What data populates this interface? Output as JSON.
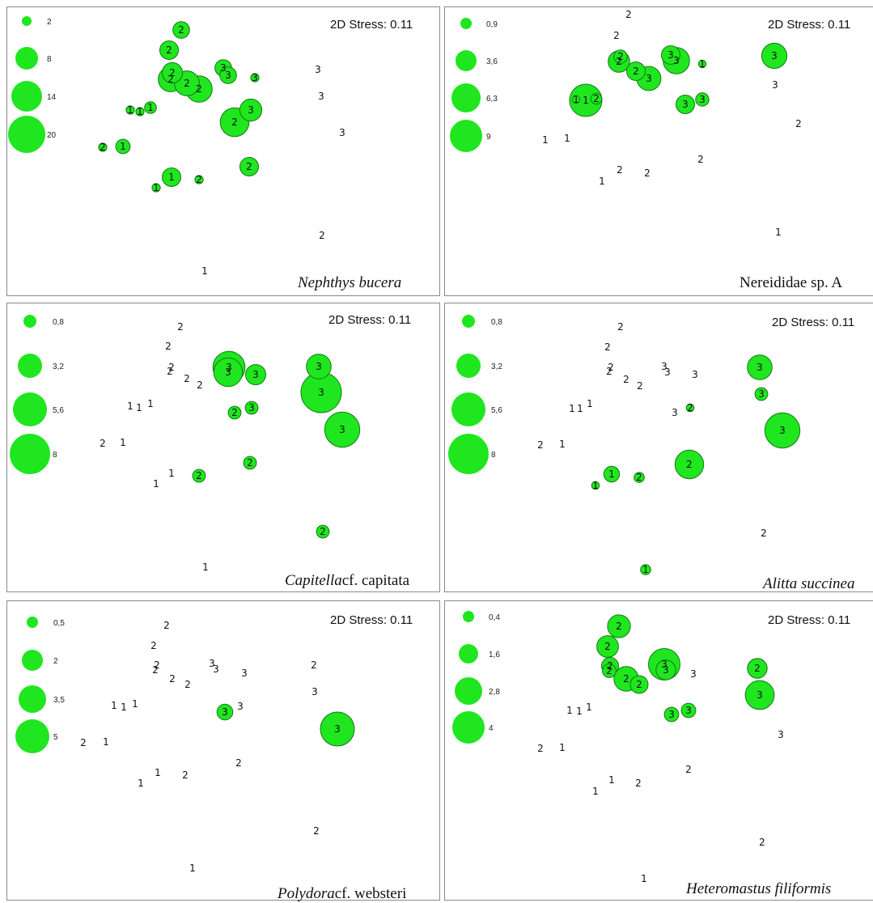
{
  "chart_data": [
    {
      "type": "scatter",
      "title": "",
      "species": "Nephthys bucera",
      "stress": "2D Stress: 0.11",
      "legend": {
        "values": [
          "2",
          "8",
          "14",
          "20"
        ]
      },
      "points": [
        {
          "group": "2",
          "size": 4
        },
        {
          "group": "2",
          "size": 5
        },
        {
          "group": "2",
          "size": 6
        },
        {
          "group": "2",
          "size": 9
        },
        {
          "group": "2",
          "size": 9
        },
        {
          "group": "2",
          "size": 10
        },
        {
          "group": "3",
          "size": 4
        },
        {
          "group": "3",
          "size": 4
        },
        {
          "group": "3",
          "size": 1
        },
        {
          "group": "1",
          "size": 1
        },
        {
          "group": "1",
          "size": 1
        },
        {
          "group": "1",
          "size": 2
        },
        {
          "group": "2",
          "size": 12
        },
        {
          "group": "3",
          "size": 7
        },
        {
          "group": "3",
          "size": 0
        },
        {
          "group": "3",
          "size": 0
        },
        {
          "group": "3",
          "size": 0
        },
        {
          "group": "2",
          "size": 1
        },
        {
          "group": "1",
          "size": 3
        },
        {
          "group": "1",
          "size": 5
        },
        {
          "group": "2",
          "size": 1
        },
        {
          "group": "1",
          "size": 1
        },
        {
          "group": "2",
          "size": 5
        },
        {
          "group": "2",
          "size": 0
        },
        {
          "group": "1",
          "size": 0
        }
      ]
    },
    {
      "type": "scatter",
      "title": "",
      "species": "Nereididae  sp. A",
      "stress": "2D Stress: 0.11",
      "legend": {
        "values": [
          "0,9",
          "3,6",
          "6,3",
          "9"
        ]
      },
      "points": [
        {
          "group": "2",
          "size": 0
        },
        {
          "group": "2",
          "size": 0
        },
        {
          "group": "2",
          "size": 1.5
        },
        {
          "group": "2",
          "size": 4
        },
        {
          "group": "2",
          "size": 3
        },
        {
          "group": "3",
          "size": 5
        },
        {
          "group": "3",
          "size": 3
        },
        {
          "group": "3",
          "size": 6
        },
        {
          "group": "1",
          "size": 0.5
        },
        {
          "group": "1",
          "size": 0.5
        },
        {
          "group": "1",
          "size": 9
        },
        {
          "group": "2",
          "size": 1
        },
        {
          "group": "3",
          "size": 3
        },
        {
          "group": "3",
          "size": 1.5
        },
        {
          "group": "3",
          "size": 5.5
        },
        {
          "group": "3",
          "size": 0
        },
        {
          "group": "2",
          "size": 0
        },
        {
          "group": "1",
          "size": 0
        },
        {
          "group": "1",
          "size": 0
        },
        {
          "group": "1",
          "size": 0
        },
        {
          "group": "2",
          "size": 0
        },
        {
          "group": "2",
          "size": 0
        },
        {
          "group": "2",
          "size": 0
        },
        {
          "group": "1",
          "size": 0
        }
      ]
    },
    {
      "type": "scatter",
      "title": "",
      "species": "Capitella",
      "species_tail": "cf. capitata",
      "stress": "2D Stress: 0.11",
      "legend": {
        "values": [
          "0,8",
          "3,2",
          "5,6",
          "8"
        ]
      },
      "points": [
        {
          "group": "2",
          "size": 0
        },
        {
          "group": "2",
          "size": 0
        },
        {
          "group": "2",
          "size": 0
        },
        {
          "group": "2",
          "size": 0
        },
        {
          "group": "2",
          "size": 0
        },
        {
          "group": "2",
          "size": 0
        },
        {
          "group": "3",
          "size": 5
        },
        {
          "group": "3",
          "size": 4
        },
        {
          "group": "3",
          "size": 2
        },
        {
          "group": "2",
          "size": 0.8
        },
        {
          "group": "3",
          "size": 0.8
        },
        {
          "group": "3",
          "size": 3
        },
        {
          "group": "3",
          "size": 8
        },
        {
          "group": "3",
          "size": 6
        },
        {
          "group": "1",
          "size": 0
        },
        {
          "group": "1",
          "size": 0
        },
        {
          "group": "1",
          "size": 0
        },
        {
          "group": "2",
          "size": 0
        },
        {
          "group": "1",
          "size": 0
        },
        {
          "group": "1",
          "size": 0
        },
        {
          "group": "1",
          "size": 0
        },
        {
          "group": "2",
          "size": 0.8
        },
        {
          "group": "2",
          "size": 0.8
        },
        {
          "group": "2",
          "size": 0.8
        },
        {
          "group": "1",
          "size": 0
        }
      ]
    },
    {
      "type": "scatter",
      "title": "",
      "species": "Alitta succinea",
      "stress": "2D Stress: 0.11",
      "legend": {
        "values": [
          "0,8",
          "3,2",
          "5,6",
          "8"
        ]
      },
      "points": [
        {
          "group": "2",
          "size": 0
        },
        {
          "group": "2",
          "size": 0
        },
        {
          "group": "2",
          "size": 0
        },
        {
          "group": "2",
          "size": 0
        },
        {
          "group": "2",
          "size": 0
        },
        {
          "group": "2",
          "size": 0
        },
        {
          "group": "3",
          "size": 0
        },
        {
          "group": "3",
          "size": 0
        },
        {
          "group": "3",
          "size": 0
        },
        {
          "group": "3",
          "size": 0
        },
        {
          "group": "2",
          "size": 0.3
        },
        {
          "group": "3",
          "size": 3
        },
        {
          "group": "3",
          "size": 0.8
        },
        {
          "group": "3",
          "size": 6
        },
        {
          "group": "1",
          "size": 0
        },
        {
          "group": "1",
          "size": 0
        },
        {
          "group": "1",
          "size": 0
        },
        {
          "group": "2",
          "size": 0
        },
        {
          "group": "1",
          "size": 0
        },
        {
          "group": "1",
          "size": 0.3
        },
        {
          "group": "1",
          "size": 1.2
        },
        {
          "group": "2",
          "size": 0.5
        },
        {
          "group": "2",
          "size": 4
        },
        {
          "group": "2",
          "size": 0
        },
        {
          "group": "1",
          "size": 0.5
        }
      ]
    },
    {
      "type": "scatter",
      "title": "",
      "species": "Polydora",
      "species_tail": "cf. websteri",
      "stress": "2D Stress: 0.11",
      "legend": {
        "values": [
          "0,5",
          "2",
          "3,5",
          "5"
        ]
      },
      "points": [
        {
          "group": "2",
          "size": 0
        },
        {
          "group": "2",
          "size": 0
        },
        {
          "group": "2",
          "size": 0
        },
        {
          "group": "2",
          "size": 0
        },
        {
          "group": "2",
          "size": 0
        },
        {
          "group": "2",
          "size": 0
        },
        {
          "group": "3",
          "size": 0
        },
        {
          "group": "3",
          "size": 0
        },
        {
          "group": "3",
          "size": 0
        },
        {
          "group": "3",
          "size": 1.1
        },
        {
          "group": "3",
          "size": 0
        },
        {
          "group": "2",
          "size": 0
        },
        {
          "group": "3",
          "size": 0
        },
        {
          "group": "3",
          "size": 5
        },
        {
          "group": "1",
          "size": 0
        },
        {
          "group": "1",
          "size": 0
        },
        {
          "group": "1",
          "size": 0
        },
        {
          "group": "2",
          "size": 0
        },
        {
          "group": "1",
          "size": 0
        },
        {
          "group": "1",
          "size": 0
        },
        {
          "group": "1",
          "size": 0
        },
        {
          "group": "2",
          "size": 0
        },
        {
          "group": "2",
          "size": 0
        },
        {
          "group": "2",
          "size": 0
        },
        {
          "group": "1",
          "size": 0
        }
      ]
    },
    {
      "type": "scatter",
      "title": "",
      "species": "Heteromastus filiformis",
      "stress": "2D Stress: 0.11",
      "legend": {
        "values": [
          "0,4",
          "1,6",
          "2,8",
          "4"
        ]
      },
      "points": [
        {
          "group": "2",
          "size": 2
        },
        {
          "group": "2",
          "size": 1.8
        },
        {
          "group": "2",
          "size": 1.1
        },
        {
          "group": "2",
          "size": 0.7
        },
        {
          "group": "2",
          "size": 2.3
        },
        {
          "group": "2",
          "size": 1.2
        },
        {
          "group": "3",
          "size": 3.8
        },
        {
          "group": "3",
          "size": 1.5
        },
        {
          "group": "3",
          "size": 0
        },
        {
          "group": "3",
          "size": 0.8
        },
        {
          "group": "3",
          "size": 0.8
        },
        {
          "group": "2",
          "size": 1.5
        },
        {
          "group": "3",
          "size": 3.2
        },
        {
          "group": "3",
          "size": 0
        },
        {
          "group": "1",
          "size": 0
        },
        {
          "group": "1",
          "size": 0
        },
        {
          "group": "1",
          "size": 0
        },
        {
          "group": "2",
          "size": 0
        },
        {
          "group": "1",
          "size": 0
        },
        {
          "group": "1",
          "size": 0
        },
        {
          "group": "1",
          "size": 0
        },
        {
          "group": "2",
          "size": 0
        },
        {
          "group": "2",
          "size": 0
        },
        {
          "group": "2",
          "size": 0
        },
        {
          "group": "1",
          "size": 0
        }
      ]
    }
  ]
}
